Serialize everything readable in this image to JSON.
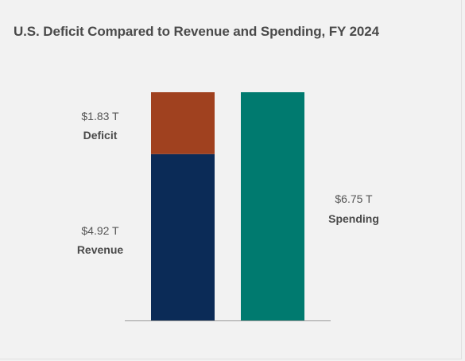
{
  "chart_data": {
    "type": "bar",
    "title": "U.S. Deficit Compared to Revenue and Spending, FY 2024",
    "unit": "T",
    "colors": {
      "deficit": "#a0411f",
      "revenue": "#0b2b57",
      "spending": "#007a6f",
      "baseline": "#999999"
    },
    "stacked_bar": {
      "segments": [
        {
          "key": "revenue",
          "name": "Revenue",
          "value": 4.92,
          "value_label": "$4.92 T"
        },
        {
          "key": "deficit",
          "name": "Deficit",
          "value": 1.83,
          "value_label": "$1.83 T"
        }
      ]
    },
    "single_bar": {
      "key": "spending",
      "name": "Spending",
      "value": 6.75,
      "value_label": "$6.75 T"
    },
    "xlabel": "",
    "ylabel": "",
    "ylim": [
      0,
      6.75
    ],
    "grid": false,
    "legend": "none"
  }
}
